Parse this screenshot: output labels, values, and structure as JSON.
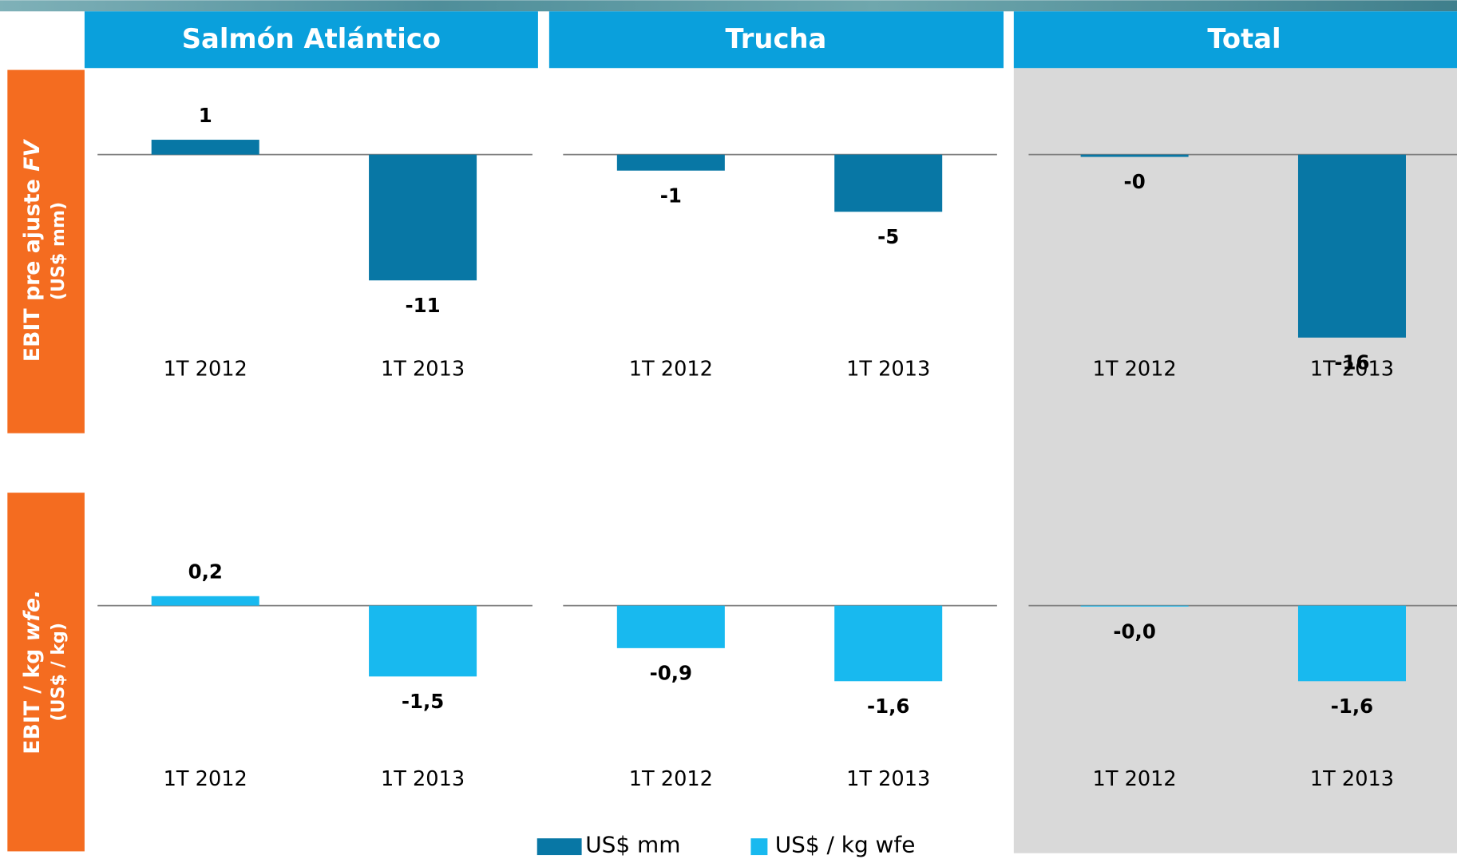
{
  "columns": [
    "Salmón Atlántico",
    "Trucha",
    "Total"
  ],
  "rows": [
    {
      "label": "EBIT pre ajuste",
      "emphasis": "FV",
      "unit": "(US$ mm)"
    },
    {
      "label": "EBIT / kg",
      "emphasis": "wfe.",
      "unit": "(US$ / kg)"
    }
  ],
  "legend": [
    {
      "name": "US$ mm",
      "color": "#0877a5"
    },
    {
      "name": "US$ / kg wfe",
      "color": "#18b9ef"
    }
  ],
  "chart_data": [
    {
      "type": "bar",
      "categories": [
        "1T 2012",
        "1T 2013"
      ],
      "values": [
        1.3,
        -11
      ],
      "value_labels": [
        "1",
        "-11"
      ],
      "color": "#0877a5",
      "ylim": [
        -19,
        7
      ]
    },
    {
      "type": "bar",
      "categories": [
        "1T 2012",
        "1T 2013"
      ],
      "values": [
        -1.4,
        -5
      ],
      "value_labels": [
        "-1",
        "-5"
      ],
      "color": "#0877a5",
      "ylim": [
        -19,
        7
      ]
    },
    {
      "type": "bar",
      "categories": [
        "1T 2012",
        "1T 2013"
      ],
      "values": [
        -0.2,
        -16
      ],
      "value_labels": [
        "-0",
        "-16"
      ],
      "color": "#0877a5",
      "ylim": [
        -19,
        7
      ]
    },
    {
      "type": "bar",
      "categories": [
        "1T 2012",
        "1T 2013"
      ],
      "values": [
        0.2,
        -1.5
      ],
      "value_labels": [
        "0,2",
        "-1,5"
      ],
      "color": "#18b9ef",
      "ylim": [
        -4.1,
        1.8
      ]
    },
    {
      "type": "bar",
      "categories": [
        "1T 2012",
        "1T 2013"
      ],
      "values": [
        -0.9,
        -1.6
      ],
      "value_labels": [
        "-0,9",
        "-1,6"
      ],
      "color": "#18b9ef",
      "ylim": [
        -4.1,
        1.8
      ]
    },
    {
      "type": "bar",
      "categories": [
        "1T 2012",
        "1T 2013"
      ],
      "values": [
        -0.02,
        -1.6
      ],
      "value_labels": [
        "-0,0",
        "-1,6"
      ],
      "color": "#18b9ef",
      "ylim": [
        -4.1,
        1.8
      ]
    }
  ]
}
